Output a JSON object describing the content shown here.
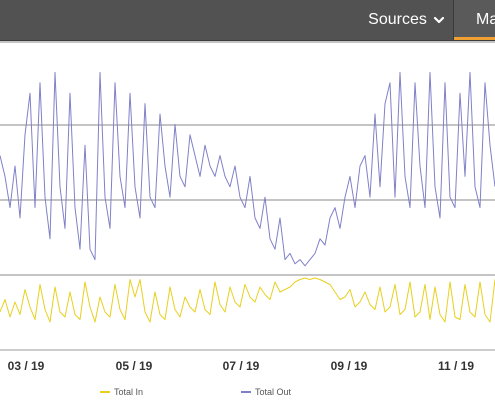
{
  "header": {
    "sources_label": "Sources",
    "sources_icon": "chevron-down-icon",
    "tab_label": "Ma",
    "tab_accent": "#f0a030",
    "bar_color": "#525252"
  },
  "chart_data": {
    "type": "line",
    "x_tick_labels": [
      "03 / 19",
      "05 / 19",
      "07 / 19",
      "09 / 19",
      "11 / 19"
    ],
    "grid": true,
    "legend_position": "bottom",
    "series": [
      {
        "name": "Total In",
        "color": "#e8d020",
        "values": [
          0.3,
          0.55,
          0.2,
          0.5,
          0.25,
          0.75,
          0.4,
          0.15,
          0.85,
          0.35,
          0.1,
          0.8,
          0.3,
          0.2,
          0.7,
          0.25,
          0.15,
          0.9,
          0.4,
          0.1,
          0.6,
          0.3,
          0.2,
          0.85,
          0.35,
          0.15,
          0.95,
          0.6,
          0.95,
          0.3,
          0.1,
          0.7,
          0.25,
          0.15,
          0.8,
          0.35,
          0.2,
          0.6,
          0.4,
          0.3,
          0.75,
          0.35,
          0.25,
          0.9,
          0.45,
          0.3,
          0.8,
          0.5,
          0.4,
          0.85,
          0.6,
          0.5,
          0.8,
          0.65,
          0.55,
          0.9,
          0.7,
          0.75,
          0.8,
          0.9,
          0.95,
          0.98,
          0.95,
          0.98,
          0.95,
          0.9,
          0.85,
          0.7,
          0.55,
          0.6,
          0.75,
          0.4,
          0.5,
          0.7,
          0.45,
          0.35,
          0.8,
          0.3,
          0.4,
          0.85,
          0.25,
          0.35,
          0.9,
          0.2,
          0.3,
          0.85,
          0.15,
          0.8,
          0.25,
          0.1,
          0.9,
          0.2,
          0.15,
          0.85,
          0.3,
          0.2,
          0.9,
          0.25,
          0.1,
          0.95
        ]
      },
      {
        "name": "Total Out",
        "color": "#8080c8",
        "values": [
          0.55,
          0.45,
          0.3,
          0.5,
          0.25,
          0.65,
          0.85,
          0.3,
          0.9,
          0.35,
          0.15,
          0.95,
          0.4,
          0.2,
          0.85,
          0.3,
          0.1,
          0.6,
          0.1,
          0.05,
          0.95,
          0.35,
          0.2,
          0.9,
          0.45,
          0.3,
          0.85,
          0.4,
          0.25,
          0.8,
          0.35,
          0.3,
          0.75,
          0.5,
          0.35,
          0.7,
          0.45,
          0.4,
          0.65,
          0.55,
          0.45,
          0.6,
          0.5,
          0.45,
          0.55,
          0.45,
          0.4,
          0.5,
          0.35,
          0.3,
          0.45,
          0.25,
          0.2,
          0.35,
          0.15,
          0.1,
          0.25,
          0.05,
          0.08,
          0.03,
          0.05,
          0.02,
          0.05,
          0.08,
          0.15,
          0.12,
          0.25,
          0.3,
          0.2,
          0.35,
          0.45,
          0.3,
          0.5,
          0.55,
          0.35,
          0.75,
          0.4,
          0.8,
          0.9,
          0.35,
          0.95,
          0.45,
          0.3,
          0.9,
          0.5,
          0.3,
          0.95,
          0.4,
          0.25,
          0.9,
          0.35,
          0.3,
          0.85,
          0.45,
          0.95,
          0.4,
          0.3,
          0.9,
          0.6,
          0.4
        ]
      }
    ]
  }
}
